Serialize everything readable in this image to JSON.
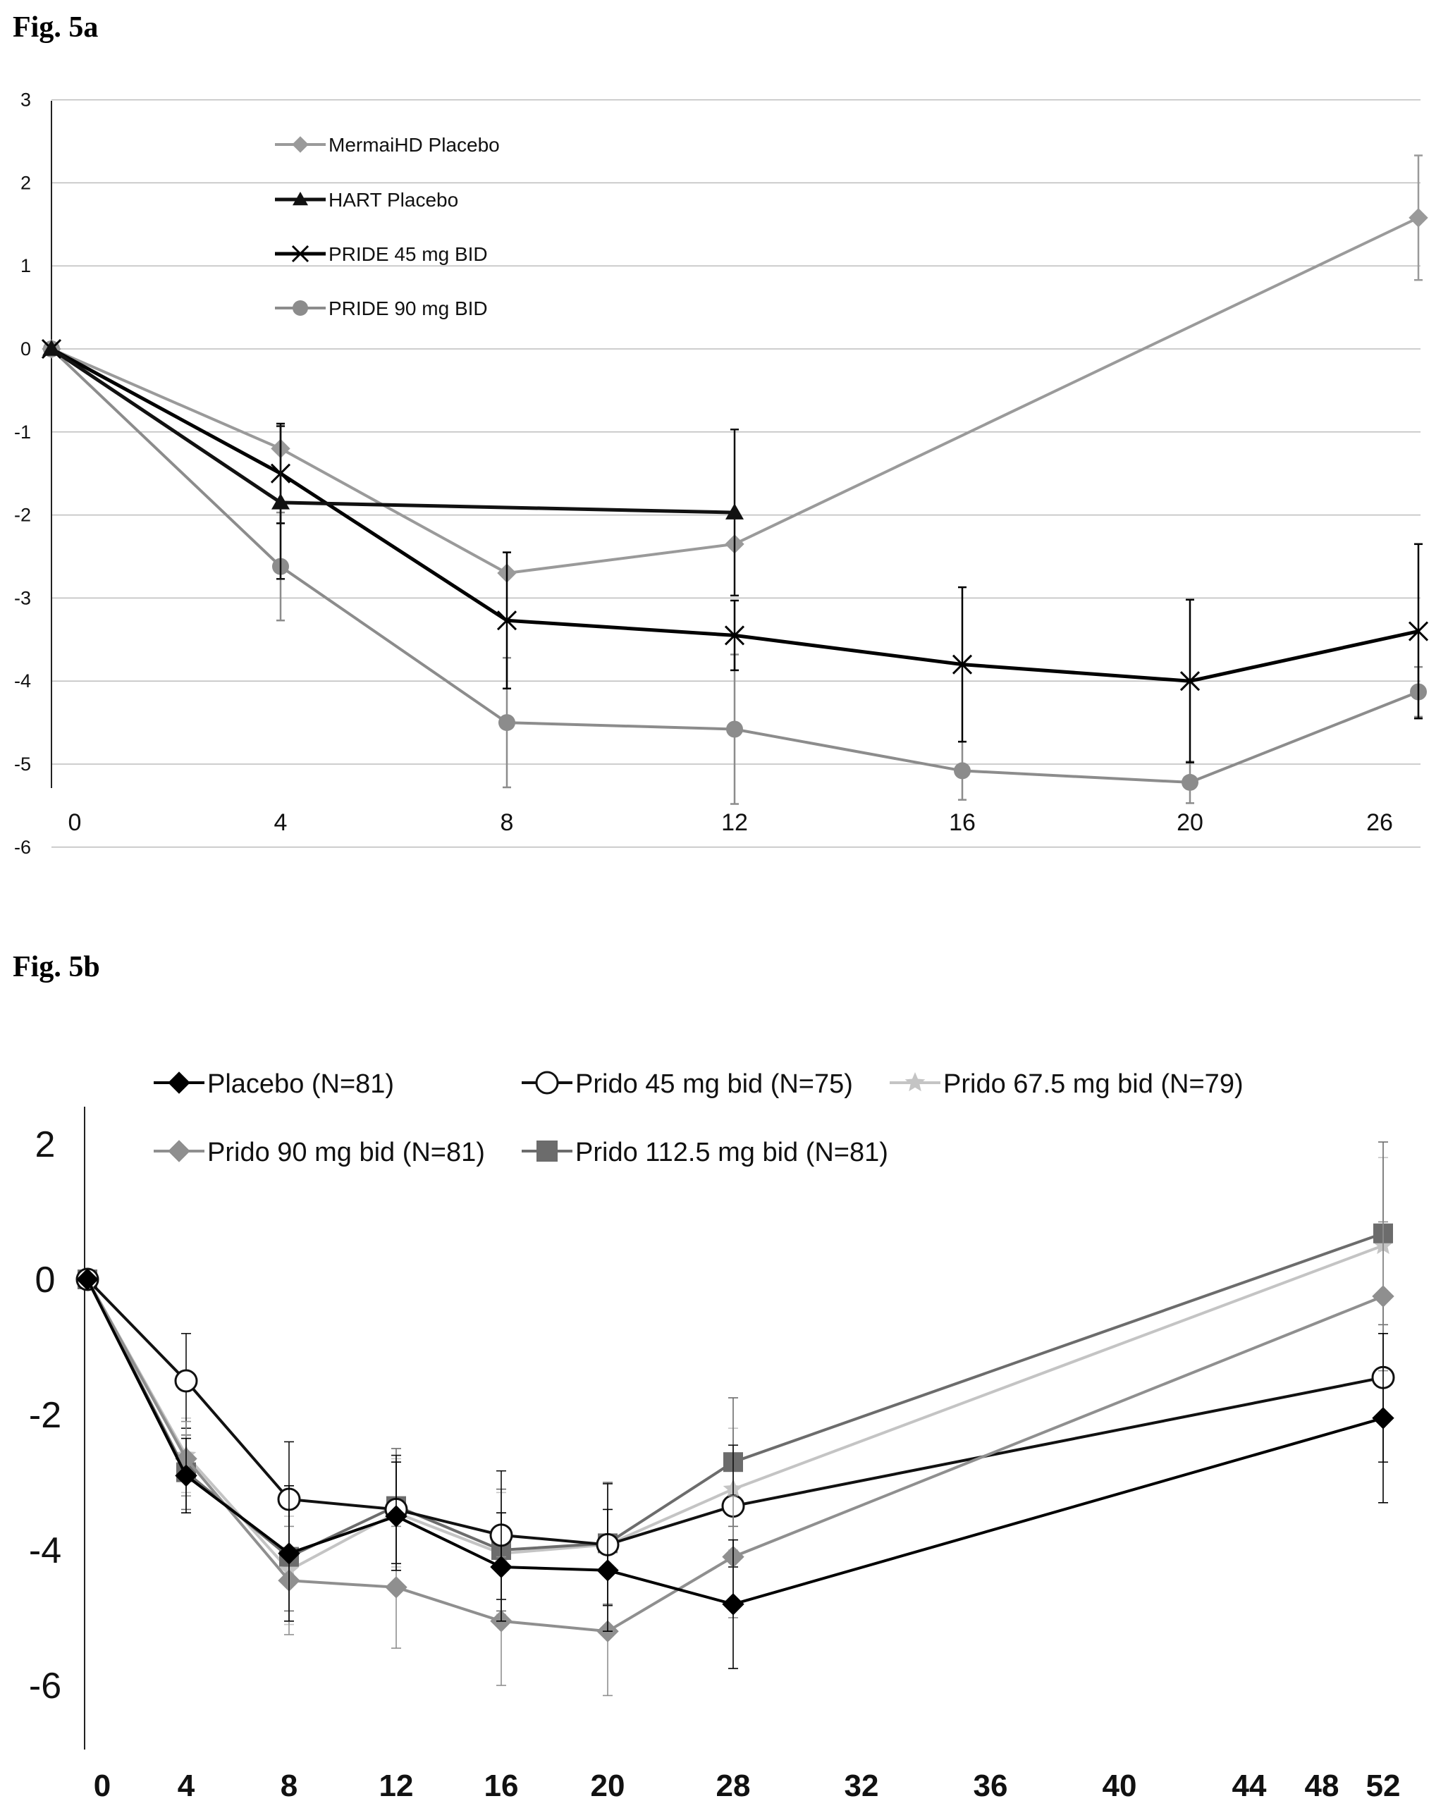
{
  "chart_data": [
    {
      "type": "line",
      "figure_label": "Fig. 5a",
      "x_tick_labels": [
        "0",
        "4",
        "8",
        "12",
        "16",
        "20",
        "26"
      ],
      "y_ticks": [
        3,
        2,
        1,
        0,
        -1,
        -2,
        -3,
        -4,
        -5,
        -6
      ],
      "ylim": [
        -6,
        3
      ],
      "grid": true,
      "legend_position": "top-left",
      "series": [
        {
          "name": "MermaiHD  Placebo",
          "color": "#9a9a9a",
          "marker": "diamond",
          "points": [
            [
              0,
              0
            ],
            [
              4,
              -1.2
            ],
            [
              8,
              -2.7
            ],
            [
              12,
              -2.35
            ],
            [
              26,
              1.58
            ]
          ],
          "errors": [
            [
              26,
              0.75
            ]
          ]
        },
        {
          "name": "HART Placebo",
          "color": "#111111",
          "marker": "triangle",
          "points": [
            [
              0,
              0
            ],
            [
              4,
              -1.85
            ],
            [
              12,
              -1.97
            ]
          ],
          "errors": [
            [
              4,
              0.92
            ],
            [
              12,
              1.0
            ]
          ]
        },
        {
          "name": "PRIDE 45 mg BID",
          "color": "#000000",
          "marker": "x",
          "points": [
            [
              0,
              0
            ],
            [
              4,
              -1.5
            ],
            [
              8,
              -3.27
            ],
            [
              12,
              -3.45
            ],
            [
              16,
              -3.8
            ],
            [
              20,
              -4.0
            ],
            [
              26,
              -3.4
            ]
          ],
          "errors": [
            [
              4,
              0.6
            ],
            [
              8,
              0.82
            ],
            [
              12,
              0.42
            ],
            [
              16,
              0.93
            ],
            [
              20,
              0.98
            ],
            [
              26,
              1.05
            ]
          ]
        },
        {
          "name": "PRIDE 90 mg BID",
          "color": "#8c8c8c",
          "marker": "circle",
          "points": [
            [
              0,
              0
            ],
            [
              4,
              -2.62
            ],
            [
              8,
              -4.5
            ],
            [
              12,
              -4.58
            ],
            [
              16,
              -5.08
            ],
            [
              20,
              -5.22
            ],
            [
              26,
              -4.13
            ]
          ],
          "errors": [
            [
              4,
              0.65
            ],
            [
              8,
              0.78
            ],
            [
              12,
              0.9
            ],
            [
              16,
              0.35
            ],
            [
              20,
              0.25
            ],
            [
              26,
              0.3
            ]
          ]
        }
      ]
    },
    {
      "type": "line",
      "figure_label": "Fig. 5b",
      "x_tick_labels": [
        "0",
        "4",
        "8",
        "12",
        "16",
        "20",
        "28",
        "32",
        "36",
        "40",
        "44",
        "48",
        "52"
      ],
      "y_ticks": [
        2,
        0,
        -2,
        -4,
        -6
      ],
      "ylim": [
        -7.2,
        2.3
      ],
      "grid": false,
      "legend_position": "top",
      "series": [
        {
          "name": "Placebo (N=81)",
          "color": "#000000",
          "marker": "diamond",
          "points": [
            [
              0,
              0
            ],
            [
              4,
              -2.9
            ],
            [
              8,
              -4.05
            ],
            [
              12,
              -3.5
            ],
            [
              16,
              -4.25
            ],
            [
              20,
              -4.3
            ],
            [
              28,
              -4.8
            ],
            [
              52,
              -2.05
            ]
          ],
          "errors": [
            [
              4,
              0.55
            ],
            [
              8,
              1.0
            ],
            [
              12,
              0.8
            ],
            [
              16,
              0.8
            ],
            [
              20,
              0.9
            ],
            [
              28,
              0.95
            ],
            [
              52,
              1.25
            ]
          ]
        },
        {
          "name": "Prido 45 mg bid (N=75)",
          "color": "#111111",
          "marker": "circle-open",
          "points": [
            [
              0,
              0
            ],
            [
              4,
              -1.5
            ],
            [
              8,
              -3.25
            ],
            [
              12,
              -3.4
            ],
            [
              16,
              -3.78
            ],
            [
              20,
              -3.92
            ],
            [
              28,
              -3.35
            ],
            [
              52,
              -1.45
            ]
          ],
          "errors": [
            [
              4,
              0.7
            ],
            [
              8,
              0.85
            ],
            [
              12,
              0.8
            ],
            [
              16,
              0.95
            ],
            [
              20,
              0.9
            ],
            [
              28,
              0.9
            ],
            [
              52,
              1.25
            ]
          ]
        },
        {
          "name": "Prido 67.5 mg bid (N=79)",
          "color": "#c4c4c4",
          "marker": "star",
          "points": [
            [
              0,
              0
            ],
            [
              4,
              -2.6
            ],
            [
              8,
              -4.3
            ],
            [
              12,
              -3.45
            ],
            [
              16,
              -4.05
            ],
            [
              20,
              -3.92
            ],
            [
              28,
              -3.1
            ],
            [
              52,
              0.5
            ]
          ],
          "errors": [
            [
              4,
              0.55
            ],
            [
              8,
              0.8
            ],
            [
              12,
              0.8
            ],
            [
              16,
              0.9
            ],
            [
              20,
              0.9
            ],
            [
              28,
              0.9
            ],
            [
              52,
              1.3
            ]
          ]
        },
        {
          "name": "Prido 90 mg bid (N=81)",
          "color": "#8f8f8f",
          "marker": "diamond",
          "points": [
            [
              0,
              0
            ],
            [
              4,
              -2.65
            ],
            [
              8,
              -4.45
            ],
            [
              12,
              -4.55
            ],
            [
              16,
              -5.05
            ],
            [
              20,
              -5.2
            ],
            [
              28,
              -4.1
            ],
            [
              52,
              -0.25
            ]
          ],
          "errors": [
            [
              4,
              0.55
            ],
            [
              8,
              0.8
            ],
            [
              12,
              0.9
            ],
            [
              16,
              0.95
            ],
            [
              20,
              0.95
            ],
            [
              28,
              0.9
            ],
            [
              52,
              1.1
            ]
          ]
        },
        {
          "name": "Prido 112.5 mg bid (N=81)",
          "color": "#6c6c6c",
          "marker": "square",
          "points": [
            [
              0,
              0
            ],
            [
              4,
              -2.85
            ],
            [
              8,
              -4.1
            ],
            [
              12,
              -3.35
            ],
            [
              16,
              -4.0
            ],
            [
              20,
              -3.9
            ],
            [
              28,
              -2.7
            ],
            [
              52,
              0.68
            ]
          ],
          "errors": [
            [
              4,
              0.55
            ],
            [
              8,
              0.8
            ],
            [
              12,
              0.85
            ],
            [
              16,
              0.9
            ],
            [
              20,
              0.9
            ],
            [
              28,
              0.95
            ],
            [
              52,
              1.35
            ]
          ]
        }
      ]
    }
  ]
}
